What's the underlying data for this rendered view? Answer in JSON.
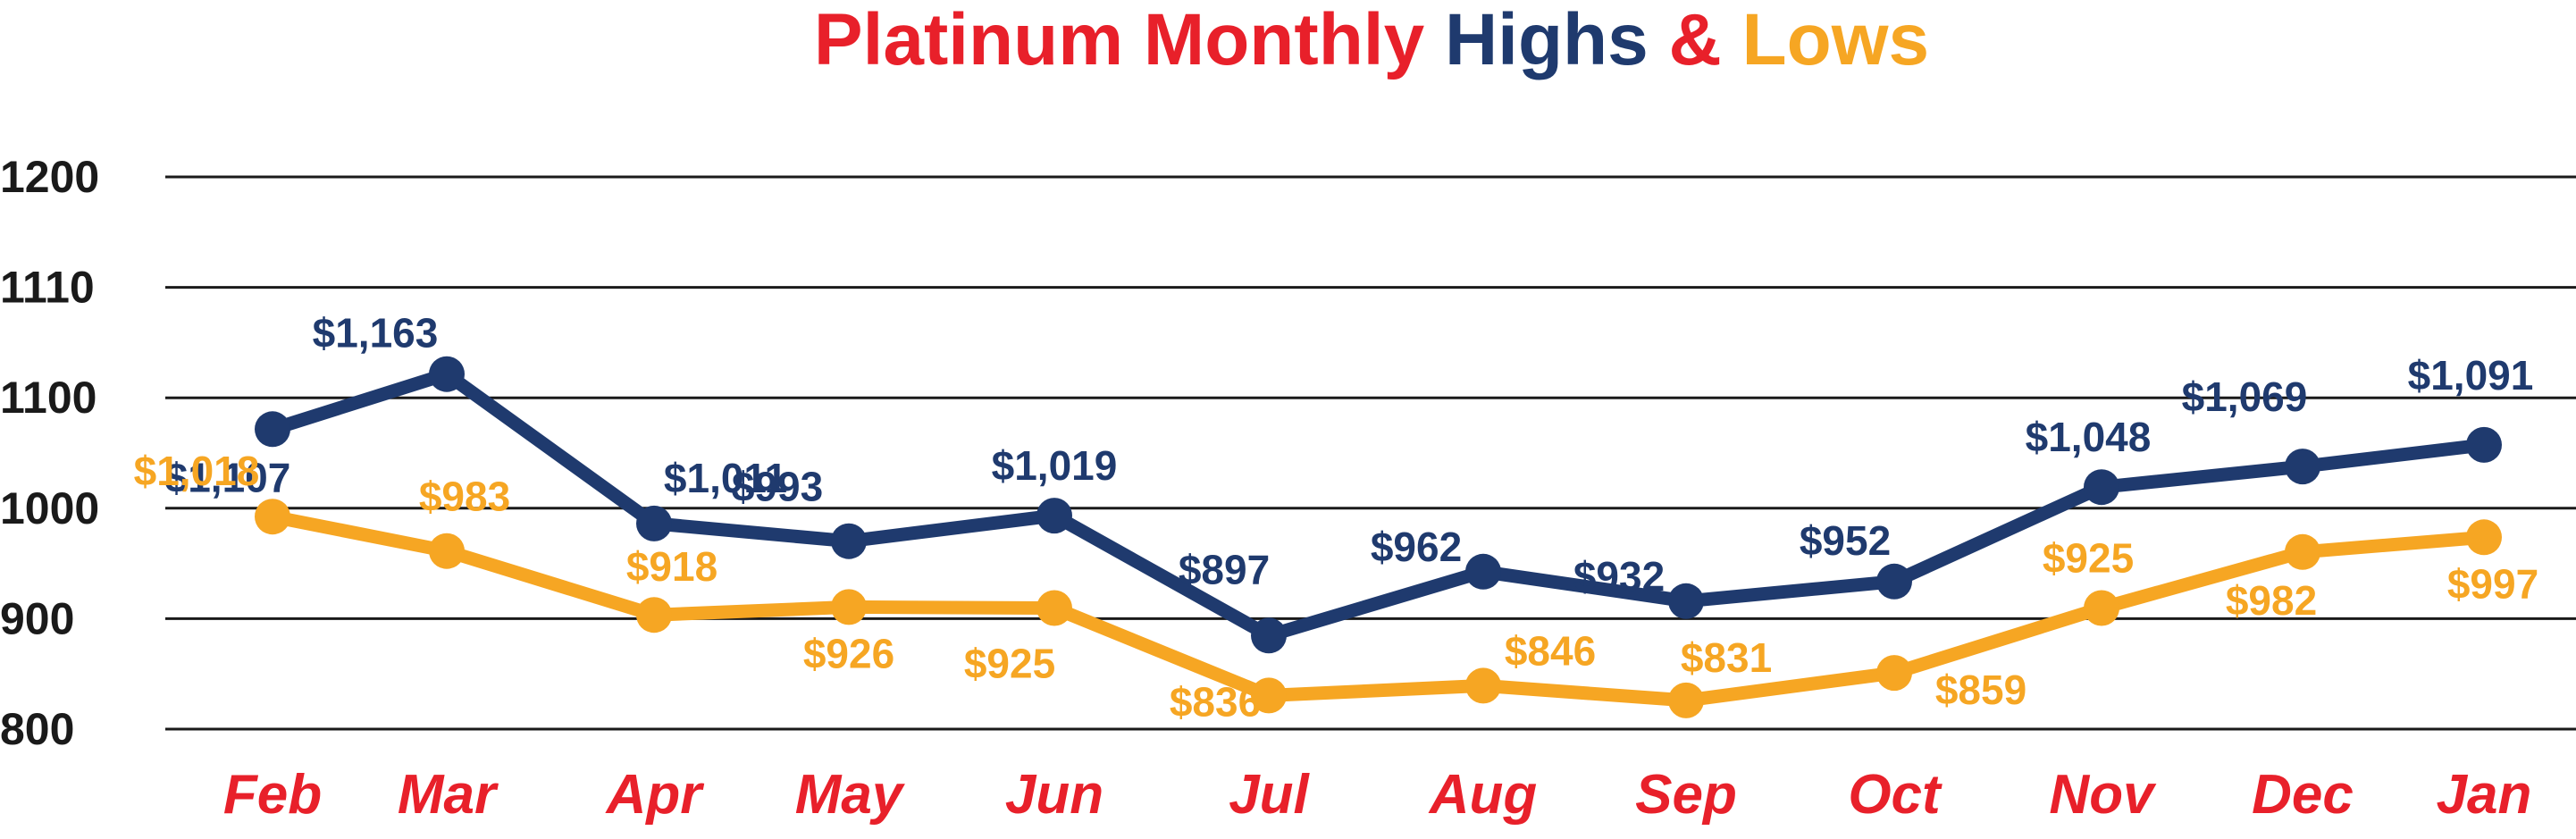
{
  "chart_data": {
    "type": "line",
    "title_parts": [
      {
        "text": "Platinum Monthly ",
        "color": "#e8202a"
      },
      {
        "text": "Highs ",
        "color": "#1f3a6e"
      },
      {
        "text": "& ",
        "color": "#e8202a"
      },
      {
        "text": "Lows",
        "color": "#f6a623"
      }
    ],
    "categories": [
      "Feb",
      "Mar",
      "Apr",
      "May",
      "Jun",
      "Jul",
      "Aug",
      "Sep",
      "Oct",
      "Nov",
      "Dec",
      "Jan"
    ],
    "y_ticks": [
      "1200",
      "1110",
      "1100",
      "1000",
      "900",
      "800"
    ],
    "grid": true,
    "series": [
      {
        "key": "highs",
        "color": "#1f3a6e",
        "values": [
          1107,
          1163,
          1011,
          993,
          1019,
          897,
          962,
          932,
          952,
          1048,
          1069,
          1091
        ],
        "labels": [
          "$1,107",
          "$1,163",
          "$1,011",
          "$993",
          "$1,019",
          "$897",
          "$962",
          "$932",
          "$952",
          "$1,048",
          "$1,069",
          "$1,091"
        ]
      },
      {
        "key": "lows",
        "color": "#f6a623",
        "values": [
          1018,
          983,
          918,
          926,
          925,
          836,
          846,
          831,
          859,
          925,
          982,
          997
        ],
        "labels": [
          "$1,018",
          "$983",
          "$918",
          "$926",
          "$925",
          "$836",
          "$846",
          "$831",
          "$859",
          "$925",
          "$982",
          "$997"
        ]
      }
    ]
  }
}
